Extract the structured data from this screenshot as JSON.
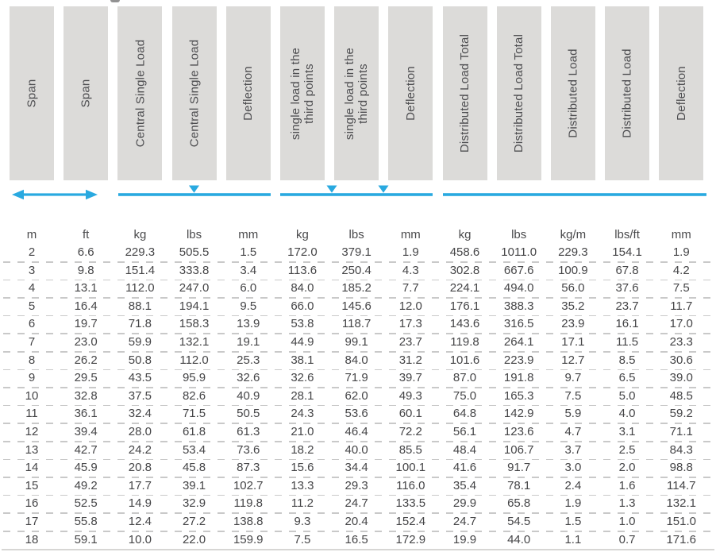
{
  "colors": {
    "accent_blue": "#29A9E0",
    "header_box_bg": "#DCDBD9",
    "header_text": "#4D4D50",
    "data_text": "#454547",
    "row_separator": "#C9C9C9",
    "bottom_line": "#D7D6D4"
  },
  "diagram_legend": {
    "span": "double-headed-arrow",
    "central_single_load": "beam line with one load marker at center",
    "single_load_third_points": "beam line with two load markers at third points",
    "distributed_load": "plain beam line"
  },
  "table": {
    "column_headers": [
      "Span",
      "Span",
      "Central Single Load",
      "Central Single Load",
      "Deflection",
      "single load in the\nthird points",
      "single load in the\nthird points",
      "Deflection",
      "Distributed Load Total",
      "Distributed Load Total",
      "Distributed Load",
      "Distributed Load",
      "Deflection"
    ],
    "units": [
      "m",
      "ft",
      "kg",
      "lbs",
      "mm",
      "kg",
      "lbs",
      "mm",
      "kg",
      "lbs",
      "kg/m",
      "lbs/ft",
      "mm"
    ],
    "rows": [
      [
        "2",
        "6.6",
        "229.3",
        "505.5",
        "1.5",
        "172.0",
        "379.1",
        "1.9",
        "458.6",
        "1011.0",
        "229.3",
        "154.1",
        "1.9"
      ],
      [
        "3",
        "9.8",
        "151.4",
        "333.8",
        "3.4",
        "113.6",
        "250.4",
        "4.3",
        "302.8",
        "667.6",
        "100.9",
        "67.8",
        "4.2"
      ],
      [
        "4",
        "13.1",
        "112.0",
        "247.0",
        "6.0",
        "84.0",
        "185.2",
        "7.7",
        "224.1",
        "494.0",
        "56.0",
        "37.6",
        "7.5"
      ],
      [
        "5",
        "16.4",
        "88.1",
        "194.1",
        "9.5",
        "66.0",
        "145.6",
        "12.0",
        "176.1",
        "388.3",
        "35.2",
        "23.7",
        "11.7"
      ],
      [
        "6",
        "19.7",
        "71.8",
        "158.3",
        "13.9",
        "53.8",
        "118.7",
        "17.3",
        "143.6",
        "316.5",
        "23.9",
        "16.1",
        "17.0"
      ],
      [
        "7",
        "23.0",
        "59.9",
        "132.1",
        "19.1",
        "44.9",
        "99.1",
        "23.7",
        "119.8",
        "264.1",
        "17.1",
        "11.5",
        "23.3"
      ],
      [
        "8",
        "26.2",
        "50.8",
        "112.0",
        "25.3",
        "38.1",
        "84.0",
        "31.2",
        "101.6",
        "223.9",
        "12.7",
        "8.5",
        "30.6"
      ],
      [
        "9",
        "29.5",
        "43.5",
        "95.9",
        "32.6",
        "32.6",
        "71.9",
        "39.7",
        "87.0",
        "191.8",
        "9.7",
        "6.5",
        "39.0"
      ],
      [
        "10",
        "32.8",
        "37.5",
        "82.6",
        "40.9",
        "28.1",
        "62.0",
        "49.3",
        "75.0",
        "165.3",
        "7.5",
        "5.0",
        "48.5"
      ],
      [
        "11",
        "36.1",
        "32.4",
        "71.5",
        "50.5",
        "24.3",
        "53.6",
        "60.1",
        "64.8",
        "142.9",
        "5.9",
        "4.0",
        "59.2"
      ],
      [
        "12",
        "39.4",
        "28.0",
        "61.8",
        "61.3",
        "21.0",
        "46.4",
        "72.2",
        "56.1",
        "123.6",
        "4.7",
        "3.1",
        "71.1"
      ],
      [
        "13",
        "42.7",
        "24.2",
        "53.4",
        "73.6",
        "18.2",
        "40.0",
        "85.5",
        "48.4",
        "106.7",
        "3.7",
        "2.5",
        "84.3"
      ],
      [
        "14",
        "45.9",
        "20.8",
        "45.8",
        "87.3",
        "15.6",
        "34.4",
        "100.1",
        "41.6",
        "91.7",
        "3.0",
        "2.0",
        "98.8"
      ],
      [
        "15",
        "49.2",
        "17.7",
        "39.1",
        "102.7",
        "13.3",
        "29.3",
        "116.0",
        "35.4",
        "78.1",
        "2.4",
        "1.6",
        "114.7"
      ],
      [
        "16",
        "52.5",
        "14.9",
        "32.9",
        "119.8",
        "11.2",
        "24.7",
        "133.5",
        "29.9",
        "65.8",
        "1.9",
        "1.3",
        "132.1"
      ],
      [
        "17",
        "55.8",
        "12.4",
        "27.2",
        "138.8",
        "9.3",
        "20.4",
        "152.4",
        "24.7",
        "54.5",
        "1.5",
        "1.0",
        "151.0"
      ],
      [
        "18",
        "59.1",
        "10.0",
        "22.0",
        "159.9",
        "7.5",
        "16.5",
        "172.9",
        "19.9",
        "44.0",
        "1.1",
        "0.7",
        "171.6"
      ]
    ]
  }
}
